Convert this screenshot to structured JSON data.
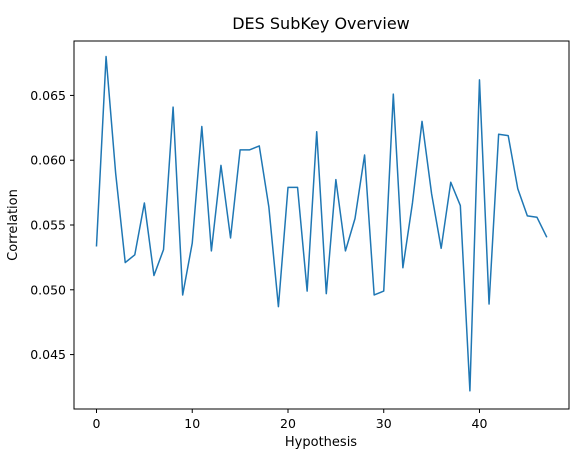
{
  "chart_data": {
    "type": "line",
    "title": "DES SubKey Overview",
    "xlabel": "Hypothesis",
    "ylabel": "Correlation",
    "xlim": [
      -2.35,
      49.35
    ],
    "ylim": [
      0.0408,
      0.0692
    ],
    "xticks": [
      0,
      10,
      20,
      30,
      40
    ],
    "xtick_labels": [
      "0",
      "10",
      "20",
      "30",
      "40"
    ],
    "yticks": [
      0.045,
      0.05,
      0.055,
      0.06,
      0.065
    ],
    "ytick_labels": [
      "0.045",
      "0.050",
      "0.055",
      "0.060",
      "0.065"
    ],
    "grid": false,
    "series_color": "#1f77b4",
    "series": [
      {
        "x": [
          0,
          1,
          2,
          3,
          4,
          5,
          6,
          7,
          8,
          9,
          10,
          11,
          12,
          13,
          14,
          15,
          16,
          17,
          18,
          19,
          20,
          21,
          22,
          23,
          24,
          25,
          26,
          27,
          28,
          29,
          30,
          31,
          32,
          33,
          34,
          35,
          36,
          37,
          38,
          39,
          40,
          41,
          42,
          43,
          44,
          45,
          46,
          47
        ],
        "values": [
          0.0534,
          0.068,
          0.059,
          0.0521,
          0.0527,
          0.0567,
          0.0511,
          0.0531,
          0.0641,
          0.0496,
          0.0536,
          0.0626,
          0.053,
          0.0596,
          0.054,
          0.0608,
          0.0608,
          0.0611,
          0.0564,
          0.0487,
          0.0579,
          0.0579,
          0.0499,
          0.0622,
          0.0497,
          0.0585,
          0.053,
          0.0555,
          0.0604,
          0.0496,
          0.0499,
          0.0651,
          0.0517,
          0.0567,
          0.063,
          0.0574,
          0.0532,
          0.0583,
          0.0565,
          0.0422,
          0.0662,
          0.0489,
          0.062,
          0.0619,
          0.0578,
          0.0557,
          0.0556,
          0.0541
        ]
      }
    ]
  }
}
